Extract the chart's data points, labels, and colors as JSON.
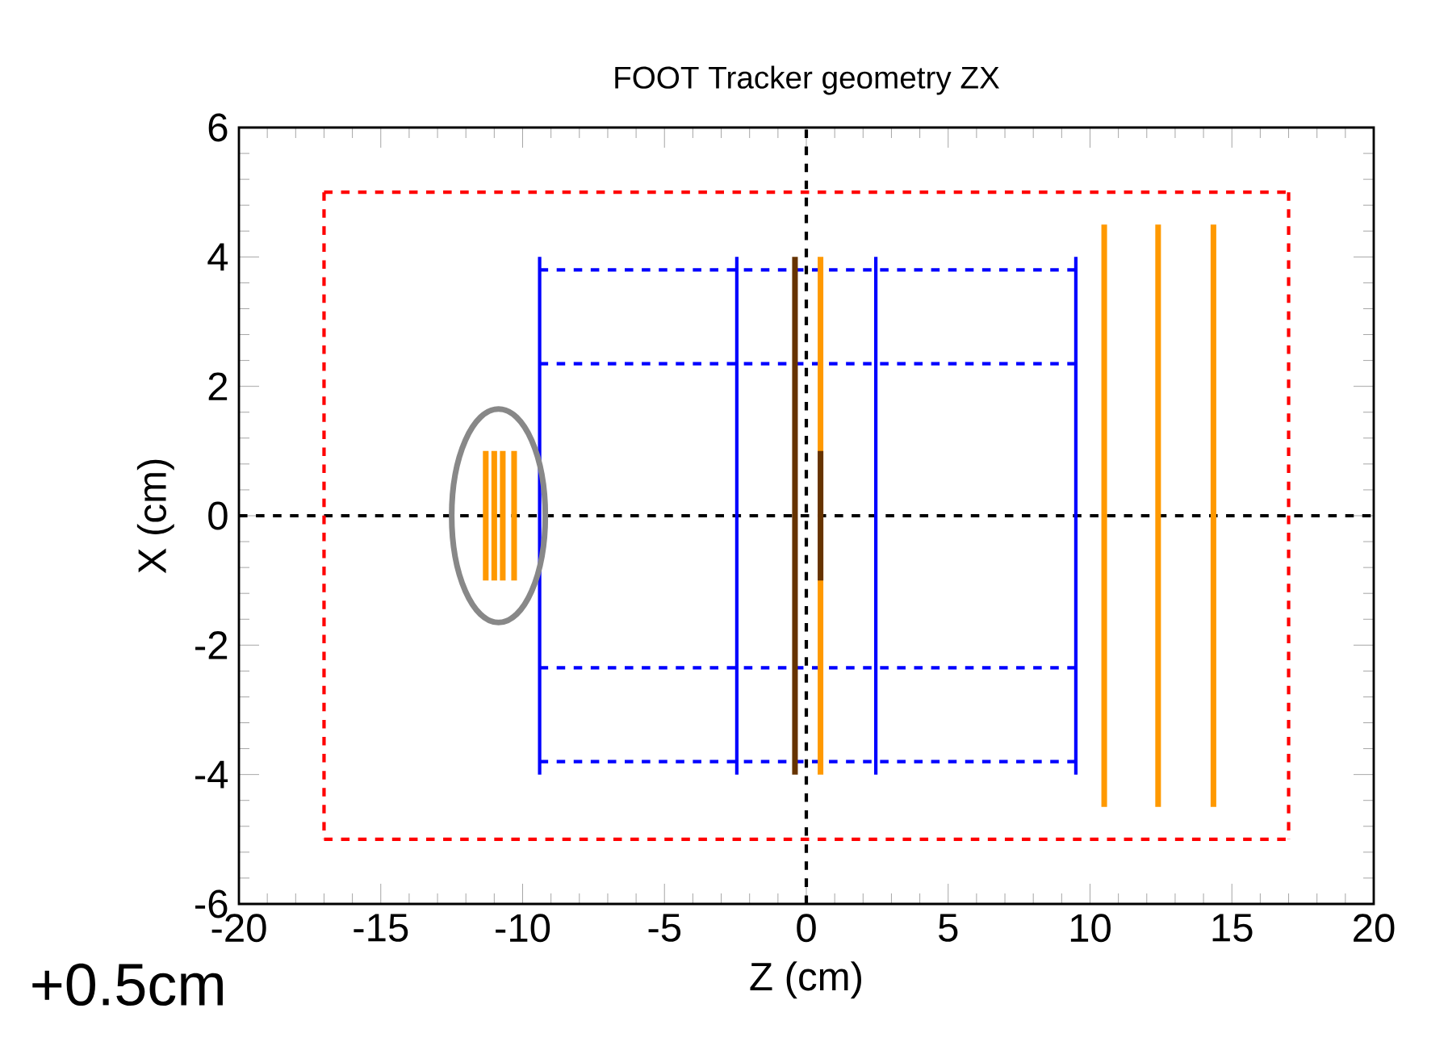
{
  "chart_data": {
    "type": "line",
    "title": "FOOT Tracker geometry ZX",
    "xlabel": "Z (cm)",
    "ylabel": "X (cm)",
    "xlim": [
      -20,
      20
    ],
    "xticks": [
      -20,
      -15,
      -10,
      -5,
      0,
      5,
      10,
      15,
      20
    ],
    "ylim": [
      -6,
      6
    ],
    "yticks": [
      -6,
      -4,
      -2,
      0,
      2,
      4,
      6
    ],
    "grid": false,
    "annotations": [
      "+0.5cm"
    ],
    "series": [
      {
        "color": "#000000",
        "line_style": "dashed",
        "x": [
          0,
          0
        ],
        "values": [
          -6,
          6
        ]
      },
      {
        "color": "#000000",
        "line_style": "dashed",
        "x": [
          -20,
          20
        ],
        "values": [
          0,
          0
        ]
      },
      {
        "color": "#ff0000",
        "line_style": "dashed",
        "x": [
          -17,
          17
        ],
        "values": [
          5,
          5
        ]
      },
      {
        "color": "#ff0000",
        "line_style": "dashed",
        "x": [
          17,
          17
        ],
        "values": [
          5,
          -5
        ]
      },
      {
        "color": "#ff0000",
        "line_style": "dashed",
        "x": [
          -17,
          17
        ],
        "values": [
          -5,
          -5
        ]
      },
      {
        "color": "#ff0000",
        "line_style": "dashed",
        "x": [
          -17,
          -17
        ],
        "values": [
          5,
          -5
        ]
      },
      {
        "color": "#0000ff",
        "line_style": "dashed",
        "x": [
          -9.4,
          9.5
        ],
        "values": [
          3.8,
          3.8
        ]
      },
      {
        "color": "#0000ff",
        "line_style": "dashed",
        "x": [
          -9.4,
          9.5
        ],
        "values": [
          2.35,
          2.35
        ]
      },
      {
        "color": "#0000ff",
        "line_style": "dashed",
        "x": [
          -9.4,
          9.5
        ],
        "values": [
          -2.35,
          -2.35
        ]
      },
      {
        "color": "#0000ff",
        "line_style": "dashed",
        "x": [
          -9.4,
          9.5
        ],
        "values": [
          -3.8,
          -3.8
        ]
      },
      {
        "color": "#0000ff",
        "line_style": "solid",
        "x": [
          -9.4,
          -9.4
        ],
        "values": [
          4,
          -4
        ]
      },
      {
        "color": "#0000ff",
        "line_style": "solid",
        "x": [
          -2.45,
          -2.45
        ],
        "values": [
          4,
          -4
        ]
      },
      {
        "color": "#0000ff",
        "line_style": "solid",
        "x": [
          2.45,
          2.45
        ],
        "values": [
          4,
          -4
        ]
      },
      {
        "color": "#0000ff",
        "line_style": "solid",
        "x": [
          9.5,
          9.5
        ],
        "values": [
          4,
          -4
        ]
      },
      {
        "color": "#ff9900",
        "line_style": "solid",
        "x": [
          0.5,
          0.5
        ],
        "values": [
          4,
          -4
        ]
      },
      {
        "color": "#ff9900",
        "line_style": "solid",
        "x": [
          10.5,
          10.5
        ],
        "values": [
          4.5,
          -4.5
        ]
      },
      {
        "color": "#ff9900",
        "line_style": "solid",
        "x": [
          12.4,
          12.4
        ],
        "values": [
          4.5,
          -4.5
        ]
      },
      {
        "color": "#ff9900",
        "line_style": "solid",
        "x": [
          14.35,
          14.35
        ],
        "values": [
          4.5,
          -4.5
        ]
      },
      {
        "color": "#ff9900",
        "line_style": "solid",
        "x": [
          -11.3,
          -11.3
        ],
        "values": [
          1,
          -1
        ]
      },
      {
        "color": "#ff9900",
        "line_style": "solid",
        "x": [
          -11.0,
          -11.0
        ],
        "values": [
          1,
          -1
        ]
      },
      {
        "color": "#ff9900",
        "line_style": "solid",
        "x": [
          -10.7,
          -10.7
        ],
        "values": [
          1,
          -1
        ]
      },
      {
        "color": "#ff9900",
        "line_style": "solid",
        "x": [
          -10.3,
          -10.3
        ],
        "values": [
          1,
          -1
        ]
      },
      {
        "color": "#663300",
        "line_style": "solid",
        "x": [
          -0.4,
          -0.4
        ],
        "values": [
          4,
          -4
        ]
      },
      {
        "color": "#663300",
        "line_style": "solid",
        "x": [
          0.5,
          0.5
        ],
        "values": [
          1,
          -1
        ]
      }
    ]
  }
}
